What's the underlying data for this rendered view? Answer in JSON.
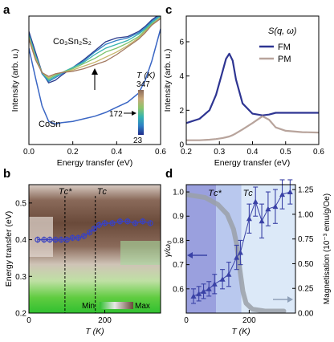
{
  "panels": [
    {
      "letter": "a",
      "type": "line",
      "xlabel": "Energy transfer (eV)",
      "ylabel": "Intensity (arb. u.)",
      "xlim": [
        0,
        0.6
      ],
      "xticks": [
        "0.0",
        "0.2",
        "0.4",
        "0.6"
      ],
      "sample_top": "Co₃Sn₂S₂",
      "sample_bottom": "CoSn",
      "colorbar": {
        "title": "T (K)",
        "max": "347",
        "mid": "172",
        "min": "23"
      },
      "chart_data": {
        "type": "line",
        "x": [
          0.0,
          0.03,
          0.06,
          0.09,
          0.12,
          0.15,
          0.2,
          0.25,
          0.3,
          0.35,
          0.4,
          0.45,
          0.5,
          0.53,
          0.56,
          0.6
        ],
        "series": [
          {
            "color": "#2a3a8c",
            "values": [
              0.88,
              0.72,
              0.56,
              0.48,
              0.5,
              0.54,
              0.6,
              0.66,
              0.73,
              0.8,
              0.83,
              0.84,
              0.88,
              0.92,
              0.97,
              1.02
            ]
          },
          {
            "color": "#2e7fc4",
            "values": [
              0.86,
              0.7,
              0.55,
              0.49,
              0.52,
              0.55,
              0.6,
              0.65,
              0.72,
              0.78,
              0.81,
              0.83,
              0.87,
              0.91,
              0.96,
              1.01
            ]
          },
          {
            "color": "#36b3b0",
            "values": [
              0.85,
              0.69,
              0.56,
              0.5,
              0.53,
              0.56,
              0.6,
              0.64,
              0.7,
              0.75,
              0.78,
              0.81,
              0.86,
              0.9,
              0.95,
              1.0
            ]
          },
          {
            "color": "#7cc36a",
            "values": [
              0.84,
              0.68,
              0.56,
              0.51,
              0.54,
              0.56,
              0.59,
              0.63,
              0.67,
              0.72,
              0.75,
              0.79,
              0.84,
              0.89,
              0.94,
              0.99
            ]
          },
          {
            "color": "#c7b66a",
            "values": [
              0.83,
              0.67,
              0.56,
              0.52,
              0.55,
              0.56,
              0.58,
              0.61,
              0.64,
              0.68,
              0.72,
              0.77,
              0.83,
              0.88,
              0.93,
              0.99
            ]
          },
          {
            "color": "#a27860",
            "values": [
              0.82,
              0.66,
              0.56,
              0.53,
              0.55,
              0.56,
              0.57,
              0.59,
              0.62,
              0.65,
              0.7,
              0.76,
              0.82,
              0.87,
              0.93,
              0.98
            ]
          },
          {
            "color": "#3a66c4",
            "values": [
              0.75,
              0.52,
              0.3,
              0.18,
              0.16,
              0.17,
              0.18,
              0.2,
              0.22,
              0.25,
              0.29,
              0.33,
              0.4,
              0.5,
              0.65,
              0.9
            ]
          }
        ]
      }
    },
    {
      "letter": "b",
      "type": "heatmap",
      "xlabel": "T (K)",
      "ylabel": "Energy transfer (eV)",
      "xticks": [
        "0",
        "200"
      ],
      "yticks": [
        "0.2",
        "0.3",
        "0.4",
        "0.5"
      ],
      "markers": [
        "Tᴄ*",
        "Tᴄ"
      ],
      "colorbar": {
        "min": "Min",
        "max": "Max"
      },
      "chart_data": {
        "type": "heatmap",
        "xlim": [
          0,
          347
        ],
        "ylim": [
          0.2,
          0.55
        ],
        "markers_x": [
          95,
          175
        ],
        "series": [
          {
            "x": [
              23,
              40,
              55,
              70,
              85,
              100,
              115,
              130,
              145,
              160,
              172,
              185,
              200,
              220,
              240,
              260,
              280,
              300,
              320
            ],
            "values": [
              0.4,
              0.4,
              0.4,
              0.4,
              0.4,
              0.4,
              0.405,
              0.405,
              0.41,
              0.42,
              0.43,
              0.44,
              0.445,
              0.445,
              0.45,
              0.45,
              0.445,
              0.45,
              0.445
            ]
          }
        ]
      }
    },
    {
      "letter": "c",
      "type": "line",
      "xlabel": "Energy transfer (eV)",
      "ylabel": "Intensity (arb. u.)",
      "legend_title": "S(q, ω)",
      "xticks": [
        "0.2",
        "0.3",
        "0.4",
        "0.5",
        "0.6"
      ],
      "yticks": [
        "0",
        "2",
        "4",
        "6"
      ],
      "chart_data": {
        "type": "line",
        "xlim": [
          0.2,
          0.6
        ],
        "ylim": [
          0,
          7.5
        ],
        "x": [
          0.2,
          0.24,
          0.27,
          0.29,
          0.31,
          0.32,
          0.33,
          0.34,
          0.35,
          0.37,
          0.4,
          0.43,
          0.45,
          0.47,
          0.5,
          0.55,
          0.6
        ],
        "series": [
          {
            "name": "FM",
            "color": "#2e3592",
            "values": [
              1.25,
              1.5,
              2.0,
              2.9,
              4.3,
              5.0,
              5.3,
              4.9,
              3.8,
              2.4,
              1.8,
              1.7,
              1.75,
              1.85,
              1.85,
              1.85,
              1.85
            ]
          },
          {
            "name": "PM",
            "color": "#b8a49c",
            "values": [
              0.25,
              0.25,
              0.28,
              0.32,
              0.38,
              0.42,
              0.47,
              0.55,
              0.65,
              0.88,
              1.25,
              1.65,
              1.45,
              1.0,
              0.8,
              0.72,
              0.7
            ]
          }
        ]
      }
    },
    {
      "letter": "d",
      "type": "scatter",
      "xlabel": "T (K)",
      "ylabel": "γ/ω₀",
      "y2label": "Magnetisation (10⁻³ emu/g/Oe)",
      "xticks": [
        "0",
        "200"
      ],
      "yticks": [
        "0.6",
        "0.7",
        "0.8",
        "0.9",
        "1.0"
      ],
      "y2ticks": [
        "0.00",
        "0.25",
        "0.50",
        "0.75",
        "1.00",
        "1.25"
      ],
      "markers": [
        "Tᴄ*",
        "Tᴄ"
      ],
      "chart_data": {
        "type": "scatter",
        "xlim": [
          0,
          347
        ],
        "ylim": [
          0.5,
          1.03
        ],
        "y2lim": [
          0,
          1.3
        ],
        "markers_x": [
          95,
          175
        ],
        "series": [
          {
            "type": "scatter",
            "x": [
              23,
              40,
              55,
              72,
              90,
              115,
              135,
              160,
              172,
              200,
              220,
              240,
              260,
              283,
              305,
              330
            ],
            "values": [
              0.57,
              0.58,
              0.59,
              0.6,
              0.62,
              0.64,
              0.66,
              0.73,
              0.75,
              0.89,
              0.96,
              0.88,
              0.93,
              0.94,
              0.99,
              1.0
            ]
          },
          {
            "type": "line",
            "axis": "y2",
            "x": [
              0,
              60,
              100,
              130,
              150,
              160,
              170,
              180,
              190,
              210,
              250,
              310
            ],
            "values": [
              1.2,
              1.17,
              1.1,
              1.0,
              0.85,
              0.7,
              0.45,
              0.22,
              0.1,
              0.04,
              0.02,
              0.02
            ]
          }
        ]
      }
    }
  ]
}
